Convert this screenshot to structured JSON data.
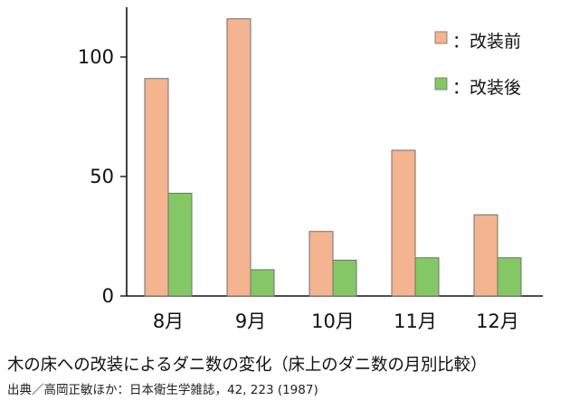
{
  "chart_data": {
    "type": "bar",
    "categories": [
      "8月",
      "9月",
      "10月",
      "11月",
      "12月"
    ],
    "series": [
      {
        "name": "：改装前",
        "color": "#f4b48f",
        "values": [
          91,
          116,
          27,
          61,
          34
        ]
      },
      {
        "name": "：改装後",
        "color": "#84c866",
        "values": [
          43,
          11,
          15,
          16,
          16
        ]
      }
    ],
    "yticks": [
      0,
      50,
      100
    ],
    "ylim": [
      0,
      120
    ],
    "grid": false,
    "legend_position": "top-right"
  },
  "caption": "木の床への改装によるダニ数の変化（床上のダニ数の月別比較）",
  "source": "出典／高岡正敏ほか：日本衛生学雑誌，42, 223 (1987)"
}
